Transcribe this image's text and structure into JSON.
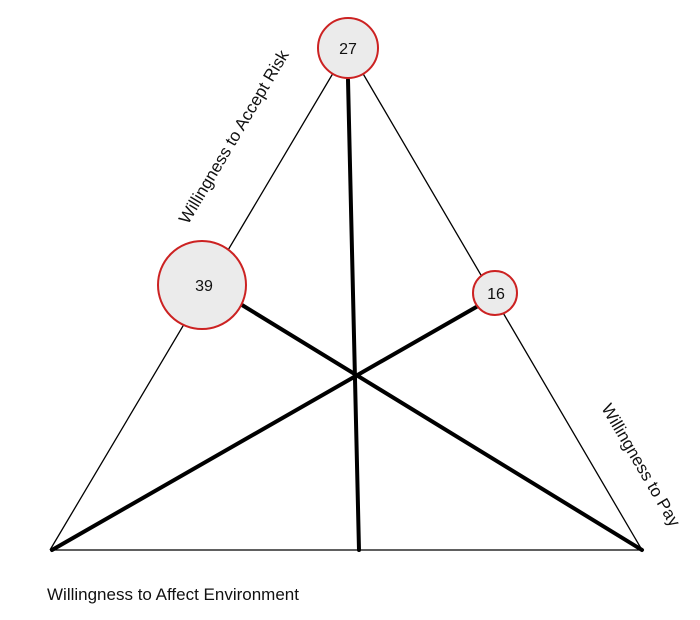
{
  "diagram": {
    "axes": {
      "left_edge": "Willingness to Accept Risk",
      "right_edge": "Willingness to Pay",
      "bottom_edge": "Willingness to Affect Environment"
    },
    "nodes": [
      {
        "id": "top",
        "value": "27"
      },
      {
        "id": "left",
        "value": "39"
      },
      {
        "id": "right",
        "value": "16"
      }
    ],
    "colors": {
      "node_fill": "#ebebeb",
      "node_border": "#cc2222",
      "lines": "#000000"
    }
  }
}
